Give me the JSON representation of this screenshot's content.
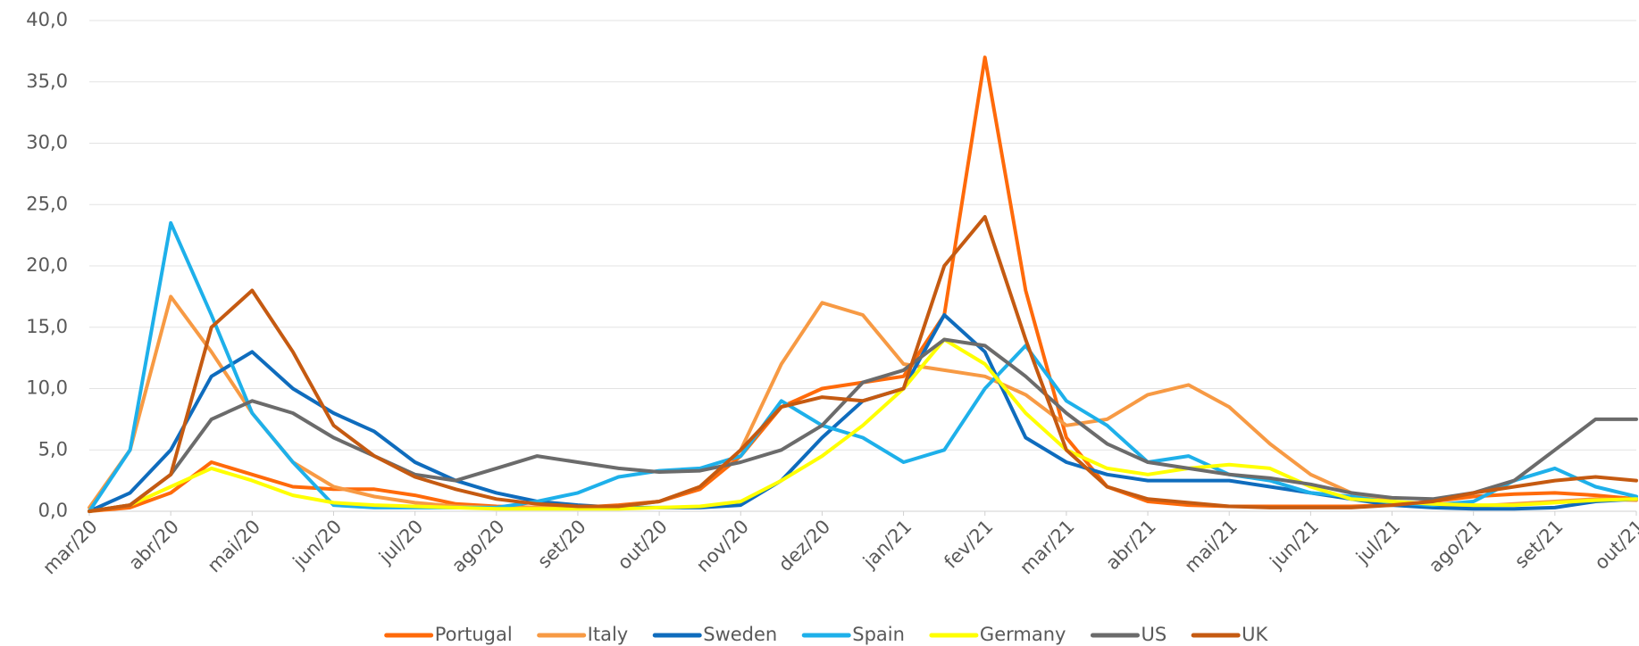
{
  "chart_data": {
    "type": "line",
    "x": [
      0,
      0.5,
      1,
      1.5,
      2,
      2.5,
      3,
      3.5,
      4,
      4.5,
      5,
      5.5,
      6,
      6.5,
      7,
      7.5,
      8,
      8.5,
      9,
      9.5,
      10,
      10.5,
      11,
      11.5,
      12,
      12.5,
      13,
      13.5,
      14,
      14.5,
      15,
      15.5,
      16,
      16.5,
      17,
      17.5,
      18,
      18.5,
      19
    ],
    "xlim": [
      0,
      19
    ],
    "xticks": [
      {
        "value": 0,
        "label": "mar/20"
      },
      {
        "value": 1,
        "label": "abr/20"
      },
      {
        "value": 2,
        "label": "mai/20"
      },
      {
        "value": 3,
        "label": "jun/20"
      },
      {
        "value": 4,
        "label": "jul/20"
      },
      {
        "value": 5,
        "label": "ago/20"
      },
      {
        "value": 6,
        "label": "set/20"
      },
      {
        "value": 7,
        "label": "out/20"
      },
      {
        "value": 8,
        "label": "nov/20"
      },
      {
        "value": 9,
        "label": "dez/20"
      },
      {
        "value": 10,
        "label": "jan/21"
      },
      {
        "value": 11,
        "label": "fev/21"
      },
      {
        "value": 12,
        "label": "mar/21"
      },
      {
        "value": 13,
        "label": "abr/21"
      },
      {
        "value": 14,
        "label": "mai/21"
      },
      {
        "value": 15,
        "label": "jun/21"
      },
      {
        "value": 16,
        "label": "jul/21"
      },
      {
        "value": 17,
        "label": "ago/21"
      },
      {
        "value": 18,
        "label": "set/21"
      },
      {
        "value": 19,
        "label": "out/21"
      }
    ],
    "ylim": [
      0,
      40
    ],
    "yticks": [
      {
        "value": 0,
        "label": "0,0"
      },
      {
        "value": 5,
        "label": "5,0"
      },
      {
        "value": 10,
        "label": "10,0"
      },
      {
        "value": 15,
        "label": "15,0"
      },
      {
        "value": 20,
        "label": "20,0"
      },
      {
        "value": 25,
        "label": "25,0"
      },
      {
        "value": 30,
        "label": "30,0"
      },
      {
        "value": 35,
        "label": "35,0"
      },
      {
        "value": 40,
        "label": "40,0"
      }
    ],
    "grid": true,
    "legend": "bottom",
    "series": [
      {
        "name": "Portugal",
        "color": "#ff6a0a",
        "values": [
          0,
          0.3,
          1.5,
          4,
          3,
          2,
          1.8,
          1.8,
          1.3,
          0.6,
          0.4,
          0.3,
          0.3,
          0.5,
          0.8,
          1.8,
          4.5,
          8.5,
          10,
          10.5,
          11,
          16,
          37,
          18,
          6,
          2,
          0.8,
          0.5,
          0.4,
          0.4,
          0.4,
          0.4,
          0.5,
          0.8,
          1.2,
          1.4,
          1.5,
          1.3,
          1.0
        ]
      },
      {
        "name": "Italy",
        "color": "#f79a44",
        "values": [
          0.3,
          5,
          17.5,
          13,
          8,
          4,
          2,
          1.2,
          0.7,
          0.4,
          0.3,
          0.3,
          0.3,
          0.4,
          0.8,
          2,
          5,
          12,
          17,
          16,
          12,
          11.5,
          11,
          9.5,
          7,
          7.5,
          9.5,
          10.3,
          8.5,
          5.5,
          3,
          1.5,
          0.8,
          0.5,
          0.4,
          0.6,
          0.8,
          1.0,
          0.9
        ]
      },
      {
        "name": "Sweden",
        "color": "#0f6cbd",
        "values": [
          0,
          1.5,
          5,
          11,
          13,
          10,
          8,
          6.5,
          4,
          2.5,
          1.5,
          0.8,
          0.5,
          0.3,
          0.3,
          0.3,
          0.5,
          2.5,
          6,
          9,
          10,
          16,
          13,
          6,
          4,
          3,
          2.5,
          2.5,
          2.5,
          2,
          1.5,
          1,
          0.5,
          0.3,
          0.2,
          0.2,
          0.3,
          0.8,
          1.0
        ]
      },
      {
        "name": "Spain",
        "color": "#1eb0ea",
        "values": [
          0,
          5,
          23.5,
          16,
          8,
          4,
          0.5,
          0.3,
          0.3,
          0.3,
          0.3,
          0.8,
          1.5,
          2.8,
          3.3,
          3.5,
          4.5,
          9,
          7,
          6,
          4,
          5,
          10,
          13.5,
          9,
          7,
          4,
          4.5,
          3,
          2.5,
          1.5,
          1.2,
          0.7,
          0.5,
          0.8,
          2.5,
          3.5,
          2,
          1.2
        ]
      },
      {
        "name": "Germany",
        "color": "#ffff00",
        "values": [
          0,
          0.5,
          2,
          3.5,
          2.5,
          1.3,
          0.7,
          0.5,
          0.4,
          0.3,
          0.2,
          0.2,
          0.2,
          0.2,
          0.3,
          0.4,
          0.8,
          2.5,
          4.5,
          7,
          10,
          14,
          12,
          8,
          5,
          3.5,
          3,
          3.5,
          3.8,
          3.5,
          2,
          1,
          0.8,
          0.6,
          0.5,
          0.5,
          0.7,
          0.9,
          1.0
        ]
      },
      {
        "name": "US",
        "color": "#6b6b6b",
        "values": [
          0,
          0.5,
          3,
          7.5,
          9,
          8,
          6,
          4.5,
          3,
          2.5,
          3.5,
          4.5,
          4,
          3.5,
          3.2,
          3.3,
          4,
          5,
          7,
          10.5,
          11.5,
          14,
          13.5,
          11,
          8,
          5.5,
          4,
          3.5,
          3,
          2.7,
          2.2,
          1.5,
          1.1,
          1.0,
          1.5,
          2.5,
          5,
          7.5,
          7.5
        ]
      },
      {
        "name": "UK",
        "color": "#c55a11",
        "values": [
          0,
          0.5,
          3,
          15,
          18,
          13,
          7,
          4.5,
          2.8,
          1.8,
          1,
          0.6,
          0.4,
          0.4,
          0.8,
          2,
          5,
          8.5,
          9.3,
          9,
          10,
          20,
          24,
          14,
          5,
          2,
          1,
          0.7,
          0.4,
          0.3,
          0.3,
          0.3,
          0.5,
          0.8,
          1.5,
          2,
          2.5,
          2.8,
          2.5
        ]
      }
    ]
  }
}
